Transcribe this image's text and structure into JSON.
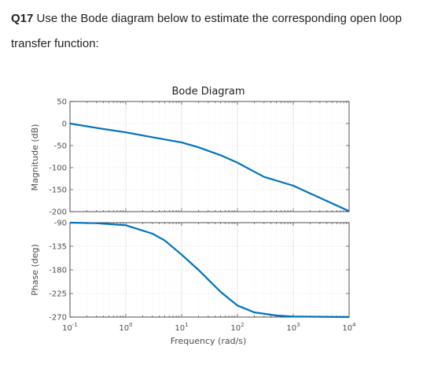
{
  "question": {
    "label": "Q17",
    "text": "Use the Bode diagram below to estimate the corresponding open loop transfer function:"
  },
  "chart_data": {
    "type": "line",
    "title": "Bode Diagram",
    "xlabel": "Frequency (rad/s)",
    "xscale": "log",
    "xlim": [
      0.1,
      10000
    ],
    "x_ticks": [
      0.1,
      1,
      10,
      100,
      1000,
      10000
    ],
    "x_tick_labels": [
      {
        "base": "10",
        "exp": "-1"
      },
      {
        "base": "10",
        "exp": "0"
      },
      {
        "base": "10",
        "exp": "1"
      },
      {
        "base": "10",
        "exp": "2"
      },
      {
        "base": "10",
        "exp": "3"
      },
      {
        "base": "10",
        "exp": "4"
      }
    ],
    "grid": true,
    "line_color": "#0072BD",
    "magnitude": {
      "ylabel": "Magnitude (dB)",
      "ylim": [
        -200,
        50
      ],
      "y_ticks": [
        50,
        0,
        -50,
        -100,
        -150,
        -200
      ],
      "points": [
        [
          0.1,
          0
        ],
        [
          0.3,
          -10
        ],
        [
          1,
          -20
        ],
        [
          3,
          -31
        ],
        [
          10,
          -43
        ],
        [
          20,
          -54
        ],
        [
          50,
          -72
        ],
        [
          100,
          -89
        ],
        [
          300,
          -121
        ],
        [
          1000,
          -141
        ],
        [
          10000,
          -199
        ]
      ]
    },
    "phase": {
      "ylabel": "Phase (deg)",
      "ylim": [
        -270,
        -90
      ],
      "y_ticks": [
        -90,
        -135,
        -180,
        -225,
        -270
      ],
      "points": [
        [
          0.1,
          -90
        ],
        [
          0.3,
          -91
        ],
        [
          1,
          -95
        ],
        [
          3,
          -111
        ],
        [
          5,
          -124
        ],
        [
          10,
          -151
        ],
        [
          20,
          -180
        ],
        [
          50,
          -222
        ],
        [
          100,
          -248
        ],
        [
          200,
          -261
        ],
        [
          500,
          -267
        ],
        [
          1000,
          -269
        ],
        [
          10000,
          -270
        ]
      ]
    }
  }
}
